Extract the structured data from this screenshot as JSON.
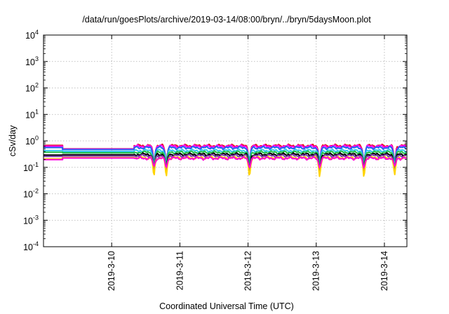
{
  "chart_data": {
    "type": "line",
    "title": "/data/run/goesPlots/archive/2019-03-14/08:00/bryn/../bryn/5daysMoon.plot",
    "xlabel": "Coordinated Universal Time (UTC)",
    "ylabel": "cSv/day",
    "yscale": "log",
    "ylim": [
      0.0001,
      10000
    ],
    "xlim": [
      0.0,
      5.33
    ],
    "x_unit": "days since 2019-03-09 00:00 UTC (ticks at 00:00)",
    "grid": true,
    "x_ticks": [
      {
        "value": 1,
        "label": "2019-3-10"
      },
      {
        "value": 2,
        "label": "2019-3-11"
      },
      {
        "value": 3,
        "label": "2019-3-12"
      },
      {
        "value": 4,
        "label": "2019-3-13"
      },
      {
        "value": 5,
        "label": "2019-3-14"
      }
    ],
    "y_ticks": [
      {
        "value": 0.0001,
        "base": "10",
        "exp": "-4"
      },
      {
        "value": 0.001,
        "base": "10",
        "exp": "-3"
      },
      {
        "value": 0.01,
        "base": "10",
        "exp": "-2"
      },
      {
        "value": 0.1,
        "base": "10",
        "exp": "-1"
      },
      {
        "value": 1,
        "base": "10",
        "exp": "0"
      },
      {
        "value": 10,
        "base": "10",
        "exp": "1"
      },
      {
        "value": 100,
        "base": "10",
        "exp": "2"
      },
      {
        "value": 1000,
        "base": "10",
        "exp": "3"
      },
      {
        "value": 10000,
        "base": "10",
        "exp": "4"
      }
    ],
    "segments": {
      "early_end": 0.28,
      "flat_end": 1.33,
      "active_start": 1.36
    },
    "series": [
      {
        "color": "#e0181f",
        "early": 0.68,
        "flat": 0.5,
        "active": 0.66,
        "dip": 0.78
      },
      {
        "color": "#ff00ff",
        "early": 0.63,
        "flat": 0.49,
        "active": 0.62,
        "dip": 0.8
      },
      {
        "color": "#1e64f0",
        "early": 0.56,
        "flat": 0.47,
        "active": 0.55,
        "dip": 0.7
      },
      {
        "color": "#36c8f0",
        "early": 0.43,
        "flat": 0.4,
        "active": 0.43,
        "dip": 0.7
      },
      {
        "color": "#22c24a",
        "early": 0.37,
        "flat": 0.355,
        "active": 0.37,
        "dip": 0.72
      },
      {
        "color": "#000000",
        "early": 0.29,
        "flat": 0.3,
        "active": 0.31,
        "dip": 0.78
      },
      {
        "color": "#7a3aa8",
        "early": 0.26,
        "flat": 0.27,
        "active": 0.275,
        "dip": 0.78
      },
      {
        "color": "#ffd400",
        "early": 0.21,
        "flat": 0.235,
        "active": 0.23,
        "dip": 0.8
      },
      {
        "color": "#ff00d8",
        "early": 0.195,
        "flat": 0.225,
        "active": 0.22,
        "dip": 0.52
      }
    ],
    "dips": [
      1.62,
      1.8,
      3.02,
      4.05,
      4.7,
      5.15
    ]
  }
}
